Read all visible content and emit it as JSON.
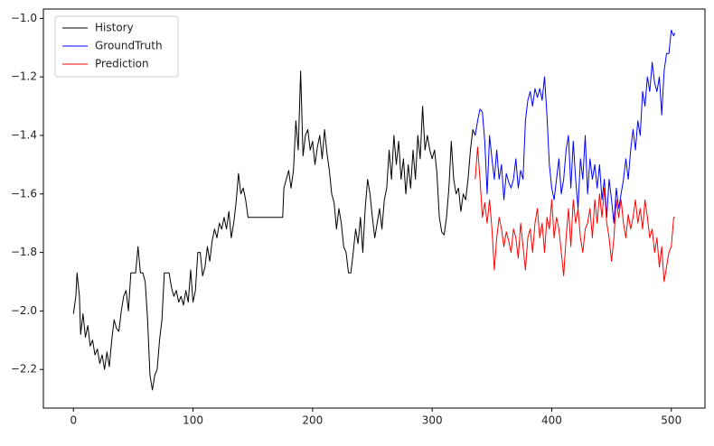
{
  "chart_data": {
    "type": "line",
    "legend": "upper left",
    "grid": false,
    "xlim": [
      -25.15,
      528.15
    ],
    "ylim": [
      -2.332,
      -0.968
    ],
    "xticks": [
      0,
      100,
      200,
      300,
      400,
      500
    ],
    "yticks": [
      {
        "value": -2.2,
        "label": "−2.2"
      },
      {
        "value": -2.0,
        "label": "−2.0"
      },
      {
        "value": -1.8,
        "label": "−1.8"
      },
      {
        "value": -1.6,
        "label": "−1.6"
      },
      {
        "value": -1.4,
        "label": "−1.4"
      },
      {
        "value": -1.2,
        "label": "−1.2"
      },
      {
        "value": -1.0,
        "label": "−1.0"
      }
    ],
    "series": [
      {
        "name": "History",
        "color": "#000000",
        "x": [
          0,
          2,
          3,
          5,
          6,
          8,
          10,
          12,
          14,
          16,
          18,
          20,
          22,
          24,
          26,
          28,
          30,
          32,
          34,
          36,
          38,
          40,
          42,
          44,
          46,
          48,
          50,
          52,
          54,
          56,
          58,
          60,
          62,
          64,
          66,
          68,
          70,
          72,
          74,
          76,
          80,
          82,
          84,
          86,
          88,
          90,
          92,
          94,
          96,
          98,
          100,
          102,
          104,
          106,
          108,
          110,
          112,
          114,
          116,
          118,
          120,
          122,
          124,
          126,
          128,
          130,
          132,
          134,
          136,
          138,
          140,
          142,
          144,
          146,
          160,
          175,
          176,
          178,
          180,
          182,
          184,
          186,
          188,
          190,
          192,
          194,
          196,
          198,
          200,
          202,
          204,
          206,
          208,
          210,
          212,
          214,
          216,
          218,
          220,
          222,
          224,
          226,
          228,
          230,
          232,
          234,
          236,
          238,
          240,
          242,
          244,
          246,
          248,
          250,
          252,
          254,
          256,
          258,
          260,
          262,
          264,
          266,
          268,
          270,
          272,
          274,
          276,
          278,
          280,
          282,
          284,
          286,
          288,
          290,
          292,
          294,
          296,
          298,
          300,
          302,
          304,
          306,
          308,
          310,
          312,
          314,
          316,
          318,
          320,
          322,
          324,
          326,
          328,
          330,
          332,
          334,
          336
        ],
        "values": [
          -2.01,
          -1.95,
          -1.87,
          -1.95,
          -2.08,
          -2.01,
          -2.09,
          -2.05,
          -2.12,
          -2.1,
          -2.15,
          -2.13,
          -2.18,
          -2.15,
          -2.2,
          -2.14,
          -2.19,
          -2.1,
          -2.03,
          -2.06,
          -2.07,
          -2.0,
          -1.95,
          -1.93,
          -2.0,
          -1.87,
          -1.87,
          -1.87,
          -1.78,
          -1.87,
          -1.87,
          -1.9,
          -2.03,
          -2.22,
          -2.27,
          -2.22,
          -2.2,
          -2.1,
          -2.03,
          -1.87,
          -1.87,
          -1.92,
          -1.95,
          -1.93,
          -1.97,
          -1.95,
          -1.98,
          -1.93,
          -1.97,
          -1.86,
          -1.97,
          -1.93,
          -1.8,
          -1.8,
          -1.88,
          -1.85,
          -1.78,
          -1.83,
          -1.76,
          -1.72,
          -1.75,
          -1.7,
          -1.72,
          -1.68,
          -1.72,
          -1.66,
          -1.75,
          -1.7,
          -1.63,
          -1.53,
          -1.6,
          -1.58,
          -1.62,
          -1.68,
          -1.68,
          -1.68,
          -1.58,
          -1.55,
          -1.52,
          -1.58,
          -1.52,
          -1.35,
          -1.45,
          -1.18,
          -1.47,
          -1.4,
          -1.38,
          -1.45,
          -1.42,
          -1.5,
          -1.44,
          -1.4,
          -1.48,
          -1.38,
          -1.46,
          -1.52,
          -1.6,
          -1.63,
          -1.72,
          -1.65,
          -1.7,
          -1.78,
          -1.8,
          -1.87,
          -1.87,
          -1.8,
          -1.72,
          -1.77,
          -1.68,
          -1.8,
          -1.65,
          -1.55,
          -1.6,
          -1.68,
          -1.75,
          -1.7,
          -1.65,
          -1.72,
          -1.62,
          -1.58,
          -1.45,
          -1.55,
          -1.4,
          -1.5,
          -1.42,
          -1.55,
          -1.48,
          -1.6,
          -1.5,
          -1.58,
          -1.45,
          -1.55,
          -1.4,
          -1.48,
          -1.3,
          -1.45,
          -1.4,
          -1.45,
          -1.48,
          -1.45,
          -1.53,
          -1.68,
          -1.73,
          -1.74,
          -1.68,
          -1.58,
          -1.42,
          -1.55,
          -1.6,
          -1.58,
          -1.66,
          -1.6,
          -1.62,
          -1.55,
          -1.45,
          -1.38,
          -1.4
        ]
      },
      {
        "name": "GroundTruth",
        "color": "#0000ff",
        "x": [
          336,
          338,
          340,
          342,
          344,
          346,
          348,
          350,
          352,
          354,
          356,
          358,
          360,
          362,
          364,
          366,
          368,
          370,
          372,
          374,
          376,
          378,
          380,
          382,
          384,
          386,
          388,
          390,
          392,
          394,
          396,
          398,
          400,
          402,
          404,
          406,
          408,
          410,
          412,
          414,
          416,
          418,
          420,
          422,
          424,
          426,
          428,
          430,
          432,
          434,
          436,
          438,
          440,
          442,
          444,
          446,
          448,
          450,
          452,
          454,
          456,
          458,
          460,
          462,
          464,
          466,
          468,
          470,
          472,
          474,
          476,
          478,
          480,
          482,
          484,
          486,
          488,
          490,
          492,
          494,
          496,
          498,
          500,
          502,
          503
        ],
        "values": [
          -1.4,
          -1.35,
          -1.31,
          -1.32,
          -1.42,
          -1.6,
          -1.4,
          -1.48,
          -1.55,
          -1.45,
          -1.55,
          -1.5,
          -1.62,
          -1.53,
          -1.56,
          -1.58,
          -1.55,
          -1.48,
          -1.58,
          -1.52,
          -1.55,
          -1.35,
          -1.28,
          -1.25,
          -1.3,
          -1.24,
          -1.27,
          -1.24,
          -1.28,
          -1.2,
          -1.33,
          -1.5,
          -1.58,
          -1.62,
          -1.55,
          -1.48,
          -1.6,
          -1.55,
          -1.45,
          -1.4,
          -1.58,
          -1.42,
          -1.55,
          -1.65,
          -1.48,
          -1.55,
          -1.4,
          -1.6,
          -1.48,
          -1.55,
          -1.5,
          -1.58,
          -1.5,
          -1.62,
          -1.55,
          -1.68,
          -1.55,
          -1.62,
          -1.7,
          -1.58,
          -1.65,
          -1.6,
          -1.55,
          -1.48,
          -1.55,
          -1.45,
          -1.38,
          -1.45,
          -1.35,
          -1.4,
          -1.25,
          -1.3,
          -1.2,
          -1.25,
          -1.15,
          -1.22,
          -1.25,
          -1.2,
          -1.33,
          -1.18,
          -1.12,
          -1.12,
          -1.04,
          -1.06,
          -1.05
        ]
      },
      {
        "name": "Prediction",
        "color": "#ff0000",
        "x": [
          336,
          338,
          340,
          342,
          344,
          346,
          348,
          350,
          352,
          354,
          356,
          358,
          360,
          362,
          364,
          366,
          368,
          370,
          372,
          374,
          376,
          378,
          380,
          382,
          384,
          386,
          388,
          390,
          392,
          394,
          396,
          398,
          400,
          402,
          404,
          406,
          408,
          410,
          412,
          414,
          416,
          418,
          420,
          422,
          424,
          426,
          428,
          430,
          432,
          434,
          436,
          438,
          440,
          442,
          444,
          446,
          448,
          450,
          452,
          454,
          456,
          458,
          460,
          462,
          464,
          466,
          468,
          470,
          472,
          474,
          476,
          478,
          480,
          482,
          484,
          486,
          488,
          490,
          492,
          494,
          496,
          498,
          500,
          502,
          503
        ],
        "values": [
          -1.55,
          -1.44,
          -1.55,
          -1.68,
          -1.63,
          -1.7,
          -1.62,
          -1.72,
          -1.86,
          -1.75,
          -1.68,
          -1.72,
          -1.78,
          -1.73,
          -1.76,
          -1.8,
          -1.72,
          -1.75,
          -1.82,
          -1.7,
          -1.78,
          -1.86,
          -1.75,
          -1.72,
          -1.8,
          -1.7,
          -1.65,
          -1.75,
          -1.7,
          -1.8,
          -1.68,
          -1.72,
          -1.62,
          -1.75,
          -1.68,
          -1.72,
          -1.8,
          -1.88,
          -1.75,
          -1.65,
          -1.78,
          -1.62,
          -1.7,
          -1.65,
          -1.75,
          -1.8,
          -1.72,
          -1.7,
          -1.65,
          -1.75,
          -1.62,
          -1.7,
          -1.6,
          -1.68,
          -1.58,
          -1.7,
          -1.75,
          -1.83,
          -1.75,
          -1.62,
          -1.68,
          -1.62,
          -1.7,
          -1.75,
          -1.67,
          -1.72,
          -1.68,
          -1.62,
          -1.7,
          -1.65,
          -1.72,
          -1.62,
          -1.68,
          -1.75,
          -1.72,
          -1.8,
          -1.75,
          -1.85,
          -1.78,
          -1.9,
          -1.85,
          -1.8,
          -1.78,
          -1.68,
          -1.68
        ]
      }
    ]
  }
}
